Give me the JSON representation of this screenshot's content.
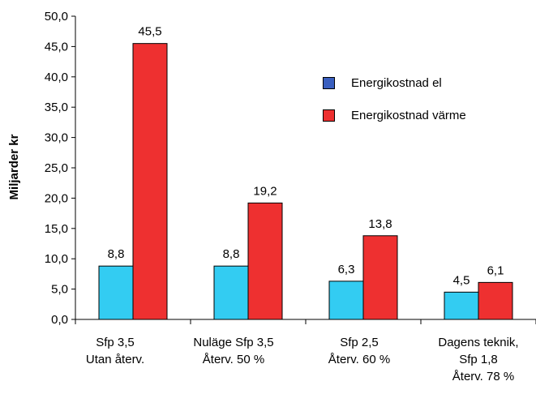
{
  "chart_data": {
    "type": "bar",
    "ylabel": "Miljarder kr",
    "ylim": [
      0,
      50
    ],
    "ytick_step": 5,
    "ytick_labels": [
      "0,0",
      "5,0",
      "10,0",
      "15,0",
      "20,0",
      "25,0",
      "30,0",
      "35,0",
      "40,0",
      "45,0",
      "50,0"
    ],
    "grid": false,
    "legend_position": "right, upper-middle",
    "categories": [
      [
        "Sfp 3,5",
        "Utan återv."
      ],
      [
        "Nuläge Sfp 3,5",
        "Återv. 50 %"
      ],
      [
        "Sfp 2,5",
        "Återv. 60 %"
      ],
      [
        "Dagens teknik,",
        "Sfp 1,8",
        "Återv. 78 %"
      ]
    ],
    "series": [
      {
        "name": "Energikostnad el",
        "color": "#33ccf2",
        "legend_color": "#3a5fbf",
        "values": [
          8.8,
          8.8,
          6.3,
          4.5
        ],
        "value_labels": [
          "8,8",
          "8,8",
          "6,3",
          "4,5"
        ]
      },
      {
        "name": "Energikostnad värme",
        "color": "#ee3030",
        "legend_color": "#ee3030",
        "values": [
          45.5,
          19.2,
          13.8,
          6.1
        ],
        "value_labels": [
          "45,5",
          "19,2",
          "13,8",
          "6,1"
        ]
      }
    ],
    "plot_background": "#ffffff"
  }
}
